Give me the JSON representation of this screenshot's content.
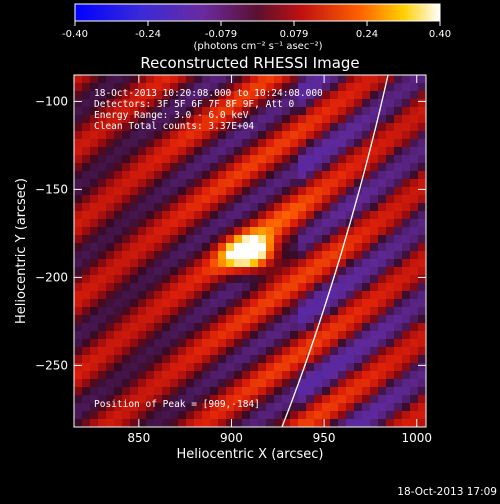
{
  "colorbar": {
    "ticks": [
      "-0.40",
      "-0.24",
      "-0.079",
      "0.079",
      "0.24",
      "0.40"
    ],
    "unit_label": "(photons cm⁻² s⁻¹ asec⁻²)",
    "range": [
      -0.4,
      0.4
    ]
  },
  "chart_data": {
    "type": "heatmap",
    "title": "Reconstructed RHESSI Image",
    "xlabel": "Heliocentric X (arcsec)",
    "ylabel": "Heliocentric Y (arcsec)",
    "xlim": [
      815,
      1005
    ],
    "ylim": [
      -285,
      -85
    ],
    "xticks": [
      850,
      900,
      950,
      1000
    ],
    "yticks": [
      -100,
      -150,
      -200,
      -250
    ],
    "peak": [
      909,
      -184
    ],
    "colormap": "blue-purple-red-yellow-white",
    "info_lines": [
      "18-Oct-2013 10:20:08.000 to 10:24:08.000",
      "Detectors: 3F 5F 6F 7F 8F 9F, Att 0",
      "Energy Range: 3.0 - 6.0 keV",
      "Clean    Total counts: 3.37E+04"
    ],
    "peak_label": "Position of Peak = [909,-184]",
    "footer_date": "18-Oct-2013 17:09"
  }
}
